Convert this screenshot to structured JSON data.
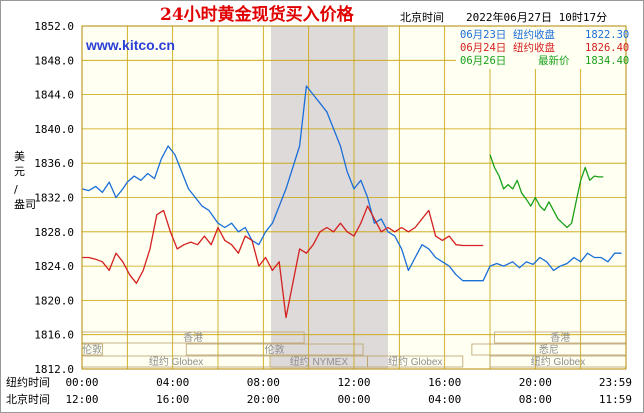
{
  "header": {
    "timezone": "北京时间",
    "timestamp": "2022年06月27日 10时17分",
    "watermark": "www.kitco.cn"
  },
  "chart_data": {
    "type": "line",
    "title": "24小时黄金现货买入价格",
    "ylabel_chars": [
      "美",
      "元",
      "/",
      "盎司"
    ],
    "ylim": [
      1812,
      1852
    ],
    "yticks": [
      "1852.0",
      "1848.0",
      "1844.0",
      "1840.0",
      "1836.0",
      "1832.0",
      "1828.0",
      "1824.0",
      "1820.0",
      "1816.0",
      "1812.0"
    ],
    "xlim": [
      0,
      24
    ],
    "x_rows": [
      {
        "label": "纽约时间",
        "ticks": [
          "00:00",
          "04:00",
          "08:00",
          "12:00",
          "16:00",
          "20:00",
          "23:59"
        ]
      },
      {
        "label": "北京时间",
        "ticks": [
          "12:00",
          "16:00",
          "20:00",
          "00:00",
          "04:00",
          "08:00",
          "11:59"
        ]
      }
    ],
    "grid": true,
    "legend_position": "top-right",
    "series": [
      {
        "name": "06月23日",
        "kind": "纽约收盘",
        "latest": "1822.30",
        "color": "#1a6ed8",
        "x": [
          0,
          0.3,
          0.6,
          0.9,
          1.2,
          1.5,
          1.8,
          2,
          2.3,
          2.6,
          2.9,
          3.2,
          3.5,
          3.8,
          4.1,
          4.4,
          4.7,
          5,
          5.3,
          5.6,
          6,
          6.3,
          6.6,
          6.9,
          7.2,
          7.5,
          7.8,
          8.1,
          8.4,
          8.7,
          9,
          9.3,
          9.6,
          9.9,
          10.2,
          10.5,
          10.8,
          11.1,
          11.4,
          11.7,
          12,
          12.3,
          12.6,
          12.9,
          13.2,
          13.5,
          13.8,
          14.1,
          14.4,
          14.7,
          15,
          15.3,
          15.6,
          15.9,
          16.2,
          16.5,
          16.8,
          17.1,
          17.4,
          17.7,
          18,
          18.3,
          18.6,
          19,
          19.3,
          19.6,
          19.9,
          20.2,
          20.5,
          20.8,
          21.1,
          21.4,
          21.7,
          22,
          22.3,
          22.6,
          22.9,
          23.2,
          23.5,
          23.8
        ],
        "y": [
          1833.0,
          1832.8,
          1833.3,
          1832.6,
          1833.8,
          1832.0,
          1833.0,
          1833.8,
          1834.5,
          1834.0,
          1834.8,
          1834.2,
          1836.5,
          1838.0,
          1837.0,
          1835.0,
          1833.0,
          1832.0,
          1831.0,
          1830.5,
          1829.0,
          1828.5,
          1829.0,
          1828.0,
          1828.5,
          1827.0,
          1826.5,
          1828.0,
          1829.0,
          1831.0,
          1833.0,
          1835.5,
          1838.0,
          1845.0,
          1844.0,
          1843.0,
          1842.0,
          1840.0,
          1838.0,
          1835.0,
          1833.0,
          1834.0,
          1832.0,
          1829.0,
          1829.5,
          1828.0,
          1827.5,
          1826.0,
          1823.5,
          1825.0,
          1826.5,
          1826.0,
          1825.0,
          1824.5,
          1824.0,
          1823.0,
          1822.3,
          1822.3,
          1822.3,
          1822.3,
          1824.0,
          1824.3,
          1824.0,
          1824.5,
          1823.8,
          1824.5,
          1824.2,
          1825.0,
          1824.5,
          1823.5,
          1824.0,
          1824.3,
          1825.0,
          1824.5,
          1825.5,
          1825.0,
          1825.0,
          1824.5,
          1825.5,
          1825.5
        ],
        "breaks": [
          {
            "from": 16.8,
            "to": 17.7,
            "flat": true
          }
        ]
      },
      {
        "name": "06月24日",
        "kind": "纽约收盘",
        "latest": "1826.40",
        "color": "#d42020",
        "x": [
          0,
          0.3,
          0.6,
          0.9,
          1.2,
          1.5,
          1.8,
          2.1,
          2.4,
          2.7,
          3.0,
          3.3,
          3.6,
          3.9,
          4.2,
          4.5,
          4.8,
          5.1,
          5.4,
          5.7,
          6.0,
          6.3,
          6.6,
          6.9,
          7.2,
          7.5,
          7.8,
          8.1,
          8.4,
          8.7,
          9.0,
          9.3,
          9.6,
          9.9,
          10.2,
          10.5,
          10.8,
          11.1,
          11.4,
          11.7,
          12.0,
          12.3,
          12.6,
          12.9,
          13.2,
          13.5,
          13.8,
          14.1,
          14.4,
          14.7,
          15.0,
          15.3,
          15.6,
          15.9,
          16.2,
          16.5,
          16.8,
          17.1,
          17.4,
          17.7
        ],
        "y": [
          1825.0,
          1825.0,
          1824.8,
          1824.5,
          1823.5,
          1825.5,
          1824.5,
          1823.0,
          1822.0,
          1823.5,
          1826.0,
          1830.0,
          1830.5,
          1828.0,
          1826.0,
          1826.5,
          1826.8,
          1826.5,
          1827.5,
          1826.5,
          1828.5,
          1827.0,
          1826.5,
          1825.5,
          1827.5,
          1827.0,
          1824.0,
          1825.0,
          1823.5,
          1824.5,
          1818.0,
          1822.0,
          1826.0,
          1825.5,
          1826.5,
          1828.0,
          1828.5,
          1828.0,
          1829.0,
          1828.0,
          1827.5,
          1829.0,
          1831.0,
          1829.5,
          1828.0,
          1828.5,
          1828.0,
          1828.5,
          1828.0,
          1828.5,
          1829.5,
          1830.5,
          1827.5,
          1827.0,
          1827.5,
          1826.5,
          1826.4,
          1826.4,
          1826.4,
          1826.4
        ]
      },
      {
        "name": "06月26日",
        "kind": "最新价",
        "latest": "1834.40",
        "color": "#1aa01a",
        "x": [
          18.0,
          18.2,
          18.4,
          18.6,
          18.8,
          19.0,
          19.2,
          19.4,
          19.6,
          19.8,
          20.0,
          20.2,
          20.4,
          20.6,
          20.8,
          21.0,
          21.2,
          21.4,
          21.6,
          21.8,
          22.0,
          22.2,
          22.4,
          22.6,
          22.8,
          23.0
        ],
        "y": [
          1837.0,
          1835.5,
          1834.5,
          1833.0,
          1833.5,
          1833.0,
          1834.0,
          1832.5,
          1831.8,
          1831.0,
          1832.0,
          1831.0,
          1830.5,
          1831.5,
          1830.5,
          1829.5,
          1829.0,
          1828.5,
          1829.0,
          1831.5,
          1834.0,
          1835.5,
          1834.0,
          1834.5,
          1834.4,
          1834.4
        ]
      }
    ],
    "sessions": [
      {
        "row": 0,
        "label": "香港",
        "start": 0,
        "end": 9.8
      },
      {
        "row": 0,
        "label": "香港",
        "start": 18.2,
        "end": 24
      },
      {
        "row": 1,
        "label": "伦敦",
        "start": 0,
        "end": 0.9
      },
      {
        "row": 1,
        "label": "伦敦",
        "start": 4.6,
        "end": 12.4
      },
      {
        "row": 1,
        "label": "悉尼",
        "start": 17.2,
        "end": 24
      },
      {
        "row": 2,
        "label": "纽约 Globex",
        "start": 0,
        "end": 8.3
      },
      {
        "row": 2,
        "label": "纽约 NYMEX",
        "start": 8.3,
        "end": 12.6
      },
      {
        "row": 2,
        "label": "纽约 Globex",
        "start": 12.6,
        "end": 16.8
      },
      {
        "row": 2,
        "label": "纽约 Globex",
        "start": 18.0,
        "end": 24
      }
    ]
  }
}
